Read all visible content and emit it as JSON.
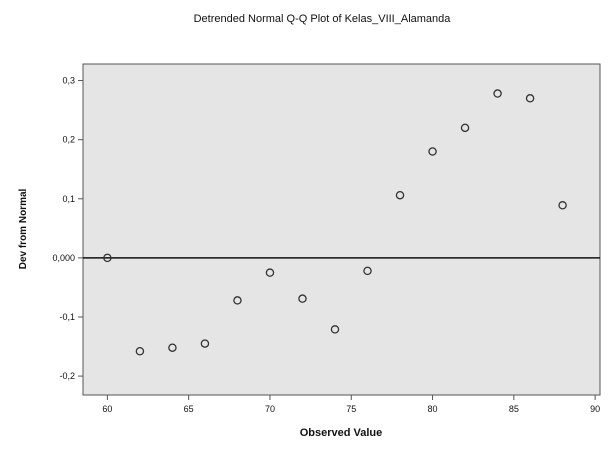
{
  "chart_data": {
    "type": "scatter",
    "title": "Detrended Normal Q-Q Plot of Kelas_VIII_Alamanda",
    "xlabel": "Observed Value",
    "ylabel": "Dev from Normal",
    "xlim": [
      58.5,
      90.3
    ],
    "ylim": [
      -0.232,
      0.328
    ],
    "x_ticks": [
      60,
      65,
      70,
      75,
      80,
      85,
      90
    ],
    "x_tick_labels": [
      "60",
      "65",
      "70",
      "75",
      "80",
      "85",
      "90"
    ],
    "y_ticks": [
      0.3,
      0.2,
      0.1,
      0.0,
      -0.1,
      -0.2
    ],
    "y_tick_labels": [
      "0,3",
      "0,2",
      "0,1",
      "0,000",
      "-0,1",
      "-0,2"
    ],
    "reference_line_y": 0.0,
    "grid": false,
    "plot_background": "#e5e5e5",
    "marker_color": "#333333",
    "points": [
      {
        "x": 60.0,
        "y": 0.0
      },
      {
        "x": 62.0,
        "y": -0.158
      },
      {
        "x": 64.0,
        "y": -0.152
      },
      {
        "x": 66.0,
        "y": -0.145
      },
      {
        "x": 68.0,
        "y": -0.072
      },
      {
        "x": 70.0,
        "y": -0.025
      },
      {
        "x": 72.0,
        "y": -0.069
      },
      {
        "x": 74.0,
        "y": -0.121
      },
      {
        "x": 76.0,
        "y": -0.022
      },
      {
        "x": 78.0,
        "y": 0.106
      },
      {
        "x": 80.0,
        "y": 0.18
      },
      {
        "x": 82.0,
        "y": 0.22
      },
      {
        "x": 84.0,
        "y": 0.278
      },
      {
        "x": 86.0,
        "y": 0.27
      },
      {
        "x": 88.0,
        "y": 0.089
      }
    ]
  }
}
